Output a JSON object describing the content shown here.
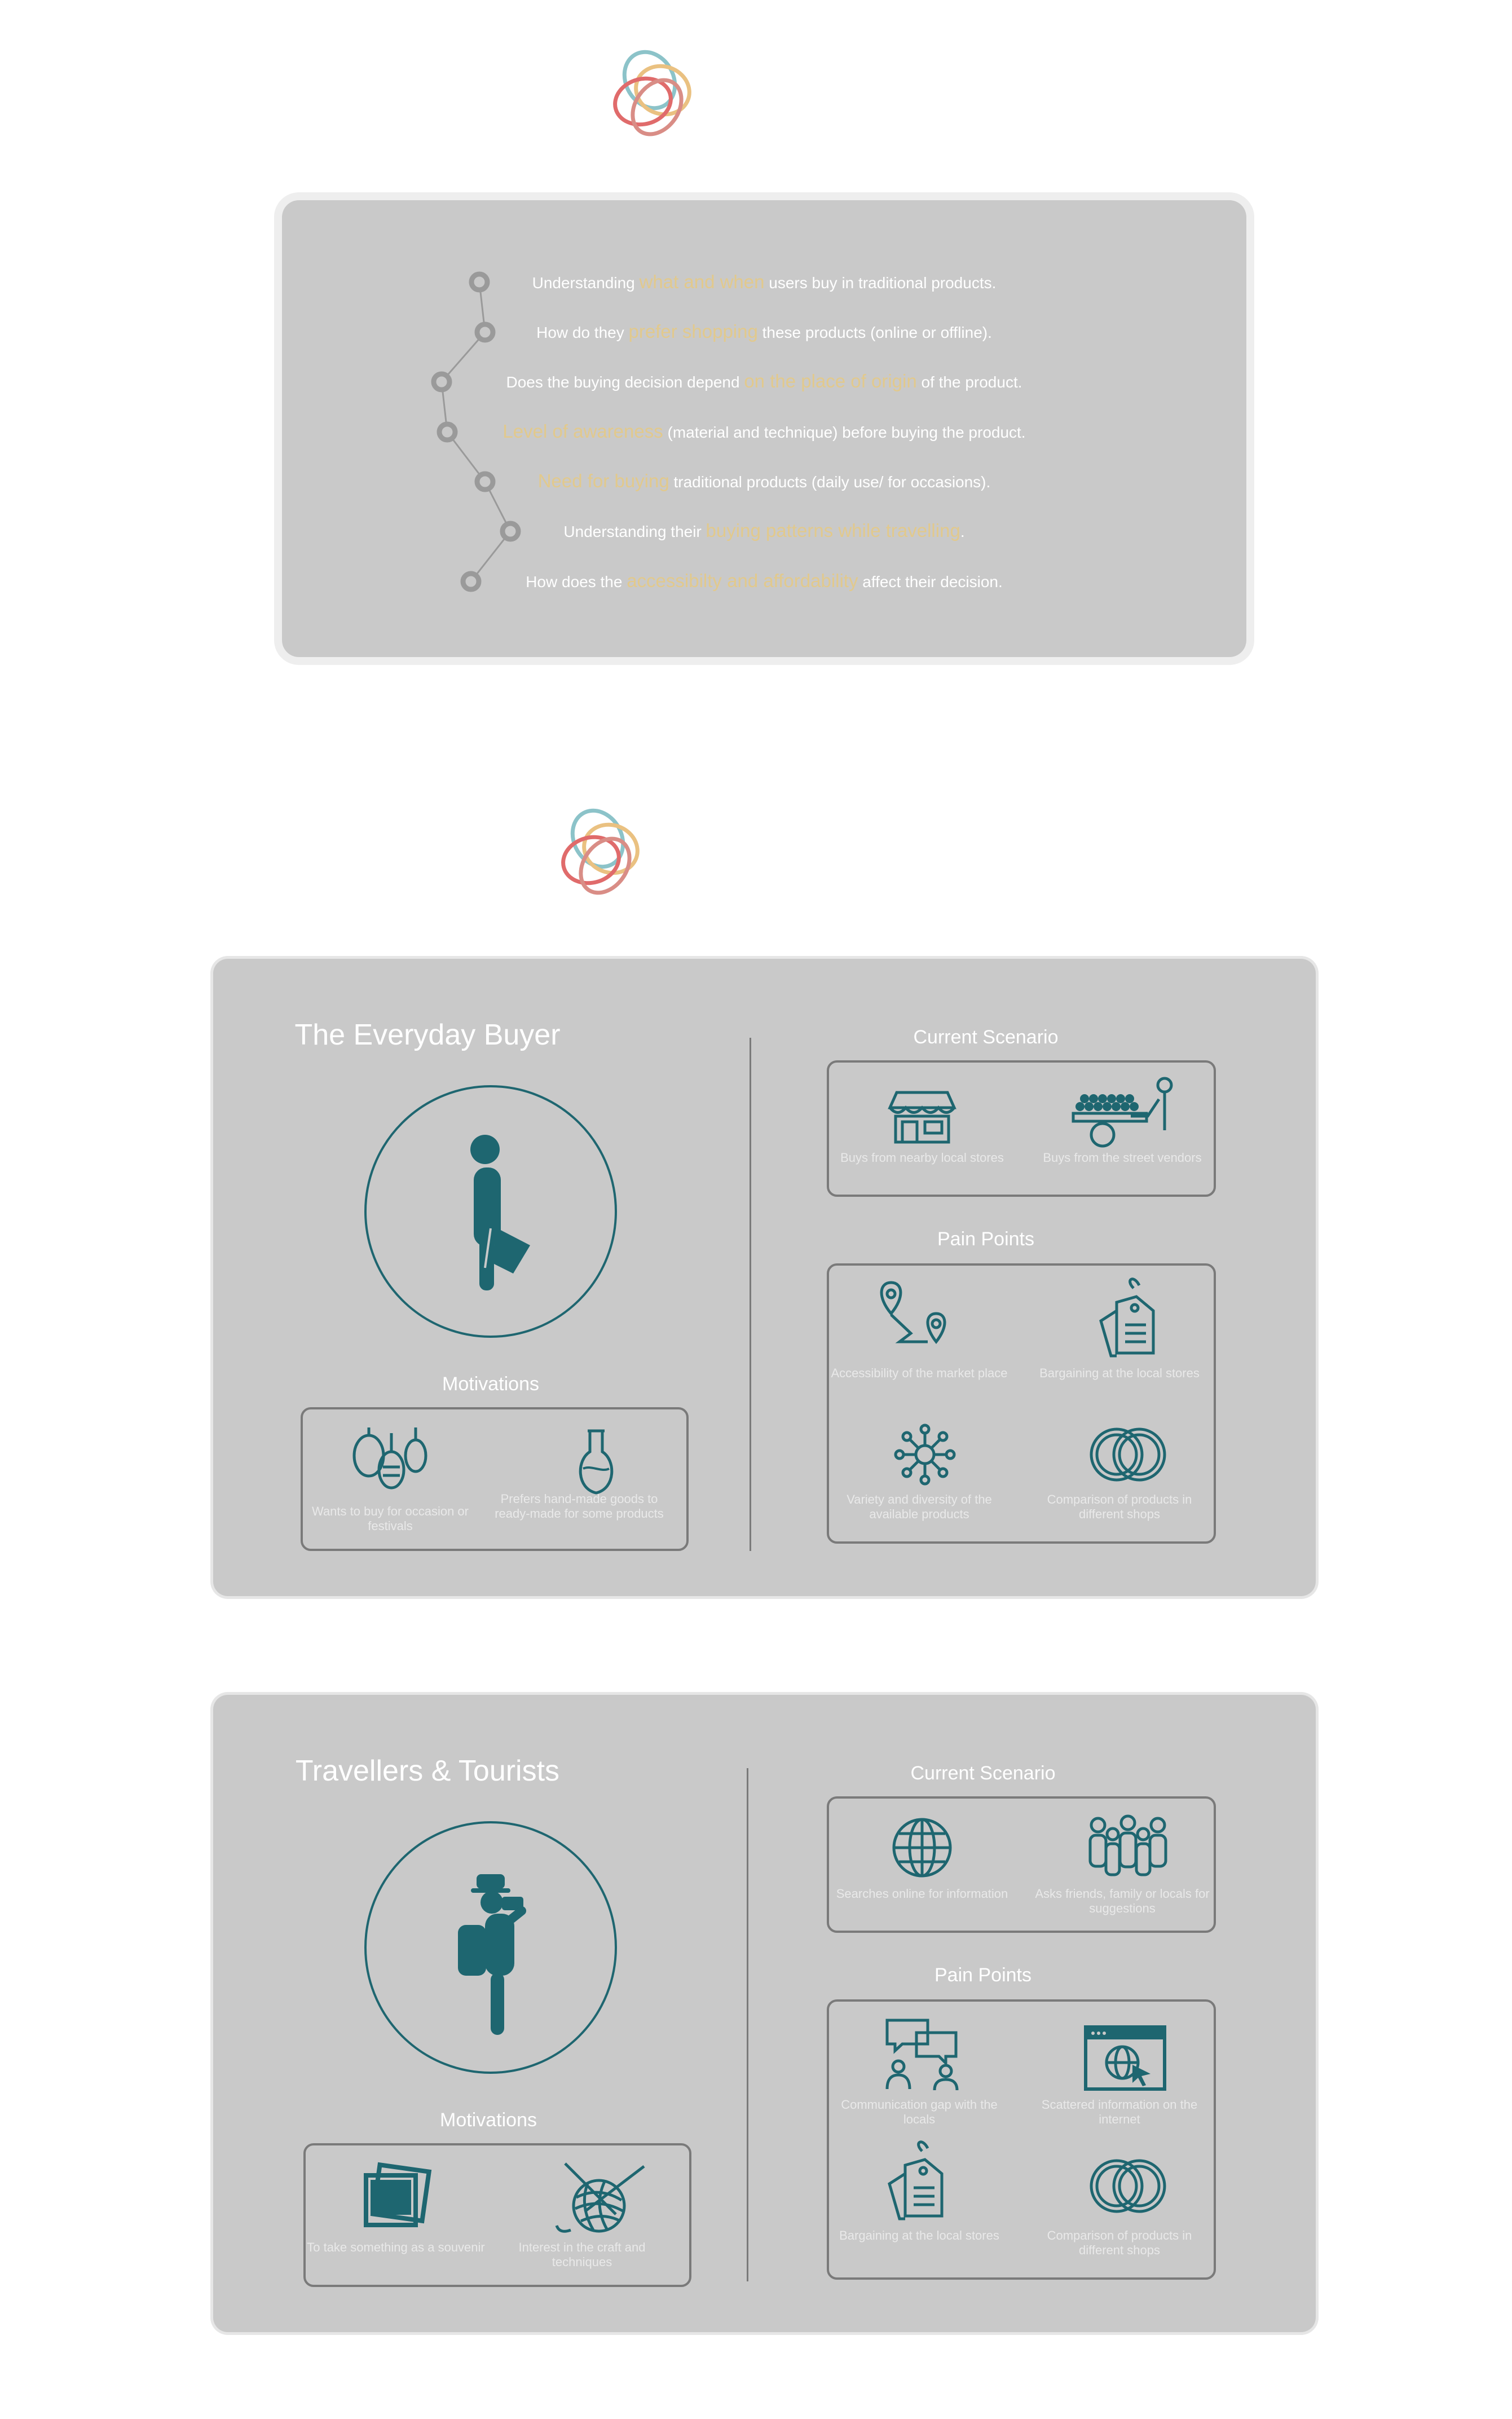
{
  "research": {
    "questions": [
      {
        "pre": "Understanding ",
        "hl": "what and when",
        "post": " users buy in traditional products."
      },
      {
        "pre": "How do they ",
        "hl": "prefer shopping",
        "post": " these products (online or offline)."
      },
      {
        "pre": "Does the buying decision depend ",
        "hl": "on the place of origin",
        "post": " of the product."
      },
      {
        "pre": "",
        "hl": "Level of awareness",
        "post": " (material and technique) before buying the product."
      },
      {
        "pre": "",
        "hl": "Need for buying",
        "post": " traditional products (daily use/ for occasions)."
      },
      {
        "pre": "Understanding their ",
        "hl": "buying patterns while travelling",
        "post": "."
      },
      {
        "pre": "How does the ",
        "hl": "accessibilty and affordability",
        "post": " affect their decision."
      }
    ]
  },
  "personas": [
    {
      "title": "The Everyday Buyer",
      "motivations_label": "Motivations",
      "motivations": [
        "Wants to buy for occasion or festivals",
        "Prefers hand-made goods to ready-made for some products"
      ],
      "current_label": "Current Scenario",
      "current": [
        "Buys from nearby local stores",
        "Buys from the street vendors"
      ],
      "pain_label": "Pain Points",
      "pain": [
        "Accessibility of the market place",
        "Bargaining at the local stores",
        "Variety and diversity of the available products",
        "Comparison of products in different shops"
      ]
    },
    {
      "title": "Travellers & Tourists",
      "motivations_label": "Motivations",
      "motivations": [
        "To take something as a souvenir",
        "Interest in the craft and techniques"
      ],
      "current_label": "Current Scenario",
      "current": [
        "Searches online for information",
        "Asks friends, family or locals for suggestions"
      ],
      "pain_label": "Pain Points",
      "pain": [
        "Communication gap with the locals",
        "Scattered information on the internet",
        "Bargaining at the local stores",
        "Comparison of products in different shops"
      ]
    }
  ],
  "colors": {
    "card": "#c9c9c9",
    "accent": "#1e6670",
    "highlight": "#e2c98c",
    "border": "#7a7a7a"
  },
  "icons": [
    "logo-rings-icon",
    "timeline-node-icon",
    "walking-shopper-icon",
    "lanterns-icon",
    "vase-icon",
    "shop-icon",
    "street-cart-icon",
    "map-route-icon",
    "price-tags-icon",
    "network-icon",
    "overlapping-circles-icon",
    "tourist-camera-icon",
    "photos-icon",
    "yarn-needles-icon",
    "globe-icon",
    "group-people-icon",
    "chat-people-icon",
    "web-browser-icon"
  ]
}
